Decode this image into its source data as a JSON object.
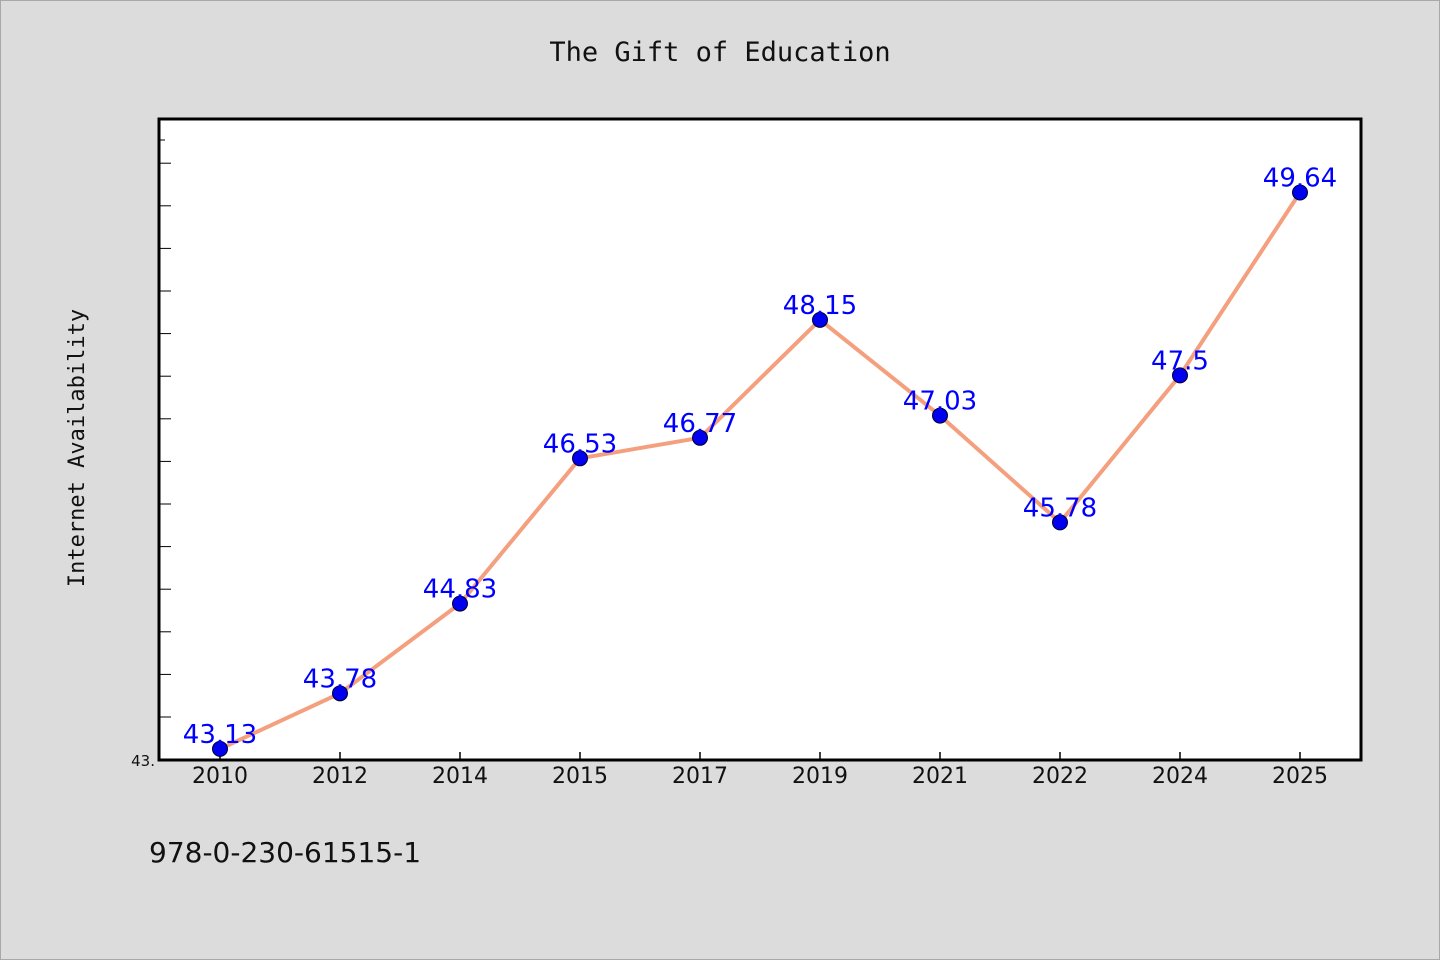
{
  "chart_data": {
    "type": "line",
    "title": "The Gift of Education",
    "xlabel": "",
    "ylabel": "Internet Availability",
    "categories": [
      "2010",
      "2012",
      "2014",
      "2015",
      "2017",
      "2019",
      "2021",
      "2022",
      "2024",
      "2025"
    ],
    "series": [
      {
        "values": [
          43.13,
          43.78,
          44.83,
          46.53,
          46.77,
          48.15,
          47.03,
          45.78,
          47.5,
          49.64
        ]
      }
    ],
    "data_labels": [
      "43.13",
      "43.78",
      "44.83",
      "46.53",
      "46.77",
      "48.15",
      "47.03",
      "45.78",
      "47.5",
      "49.64"
    ],
    "ylim": [
      43.0,
      50.5
    ],
    "ytick_label": "43.",
    "grid": false,
    "legend": "none",
    "colors": {
      "line": "#f4a07e",
      "marker": "#0000ee",
      "label": "#0000ff",
      "background": "#dcdcdc",
      "plot_background": "#ffffff"
    }
  },
  "footer": {
    "isbn": "978-0-230-61515-1"
  }
}
